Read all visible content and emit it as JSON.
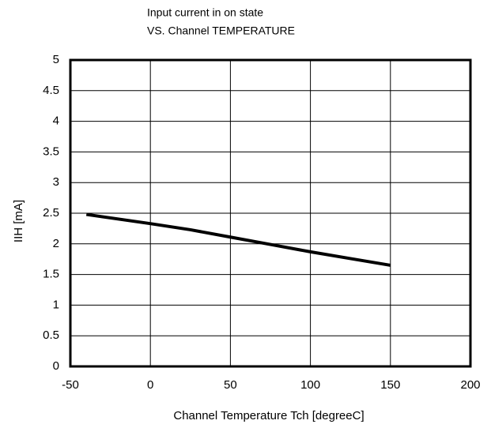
{
  "chart_data": {
    "type": "line",
    "title": "Input current in on state",
    "subtitle": "VS. Channel TEMPERATURE",
    "x_label": "Channel Temperature  Tch [degreeC]",
    "y_label": "IIH [mA]",
    "x": [
      -40,
      0,
      25,
      50,
      75,
      100,
      125,
      150
    ],
    "series": [
      {
        "name": "IIH",
        "color": "#000000",
        "values": [
          2.48,
          2.33,
          2.23,
          2.11,
          1.99,
          1.87,
          1.76,
          1.65
        ]
      }
    ],
    "xlim": [
      -50,
      200
    ],
    "xticks": [
      -50,
      0,
      50,
      100,
      150,
      200
    ],
    "ylim": [
      0,
      5
    ],
    "yticks": [
      0,
      0.5,
      1,
      1.5,
      2,
      2.5,
      3,
      3.5,
      4,
      4.5,
      5
    ],
    "grid": true,
    "legend": false
  }
}
